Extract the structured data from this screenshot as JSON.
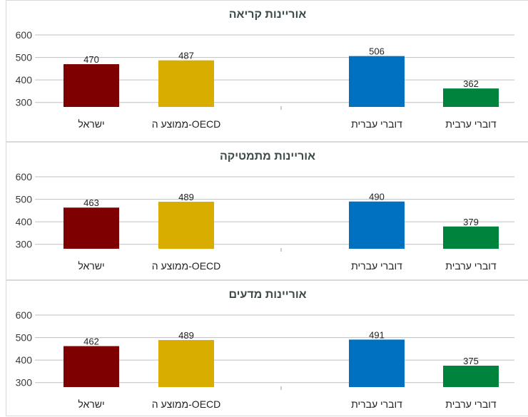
{
  "chart_data": [
    {
      "type": "bar",
      "title": "אוריינות קריאה",
      "categories": [
        "ישראל",
        "ממוצע ה-OECD",
        "",
        "דוברי עברית",
        "דוברי ערבית"
      ],
      "values": [
        470,
        487,
        null,
        506,
        362
      ],
      "colors": [
        "#7f0000",
        "#d9ad00",
        null,
        "#0070c0",
        "#00843d"
      ],
      "yticks": [
        300,
        400,
        500,
        600
      ],
      "ylim": [
        280,
        600
      ],
      "grid": true,
      "xlabel": "",
      "ylabel": ""
    },
    {
      "type": "bar",
      "title": "אוריינות מתמטיקה",
      "categories": [
        "ישראל",
        "ממוצע ה-OECD",
        "",
        "דוברי עברית",
        "דוברי ערבית"
      ],
      "values": [
        463,
        489,
        null,
        490,
        379
      ],
      "colors": [
        "#7f0000",
        "#d9ad00",
        null,
        "#0070c0",
        "#00843d"
      ],
      "yticks": [
        300,
        400,
        500,
        600
      ],
      "ylim": [
        280,
        600
      ],
      "grid": true,
      "xlabel": "",
      "ylabel": ""
    },
    {
      "type": "bar",
      "title": "אוריינות מדעים",
      "categories": [
        "ישראל",
        "ממוצע ה-OECD",
        "",
        "דוברי עברית",
        "דוברי ערבית"
      ],
      "values": [
        462,
        489,
        null,
        491,
        375
      ],
      "colors": [
        "#7f0000",
        "#d9ad00",
        null,
        "#0070c0",
        "#00843d"
      ],
      "yticks": [
        300,
        400,
        500,
        600
      ],
      "ylim": [
        280,
        600
      ],
      "grid": true,
      "xlabel": "",
      "ylabel": ""
    }
  ]
}
